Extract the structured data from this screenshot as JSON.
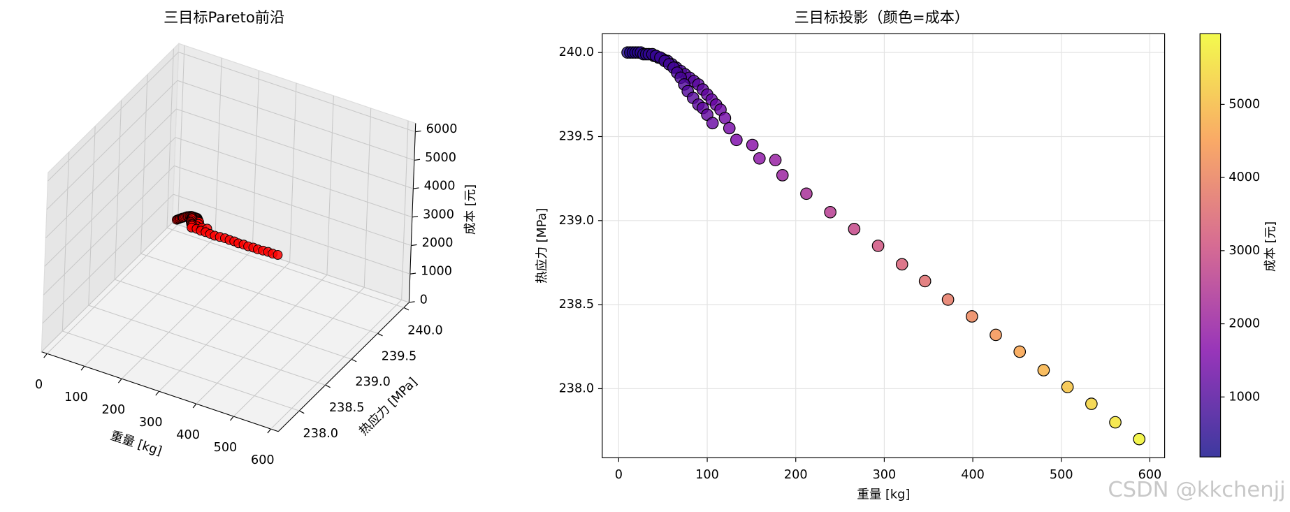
{
  "chart_data": [
    {
      "type": "scatter3d",
      "title": "三目标Pareto前沿",
      "xlabel": "重量 [kg]",
      "ylabel": "热应力 [MPa]",
      "zlabel": "成本 [元]",
      "color": "#ff0000",
      "x": [
        10,
        13,
        16,
        19,
        22,
        25,
        28,
        31,
        34,
        40,
        45,
        50,
        55,
        60,
        65,
        70,
        75,
        80,
        85,
        90,
        95,
        100,
        105,
        110,
        115,
        120,
        125,
        38,
        42,
        47,
        52,
        57,
        62,
        66,
        70,
        74,
        78,
        84,
        90,
        95,
        100,
        106,
        133,
        151,
        159,
        177,
        185,
        212,
        239,
        266,
        293,
        320,
        346,
        372,
        399,
        426,
        453,
        480,
        507,
        534,
        561,
        588
      ],
      "y": [
        240.0,
        240.0,
        240.0,
        240.0,
        240.0,
        240.0,
        239.99,
        239.99,
        239.99,
        239.98,
        239.97,
        239.96,
        239.95,
        239.93,
        239.91,
        239.89,
        239.87,
        239.85,
        239.83,
        239.81,
        239.78,
        239.75,
        239.72,
        239.69,
        239.66,
        239.61,
        239.55,
        239.99,
        239.98,
        239.97,
        239.95,
        239.93,
        239.91,
        239.88,
        239.85,
        239.81,
        239.77,
        239.73,
        239.69,
        239.67,
        239.63,
        239.58,
        239.48,
        239.45,
        239.37,
        239.36,
        239.27,
        239.16,
        239.05,
        238.95,
        238.85,
        238.74,
        238.64,
        238.53,
        238.43,
        238.32,
        238.22,
        238.11,
        238.01,
        237.91,
        237.8,
        237.7
      ],
      "z": [
        395,
        424,
        452,
        481,
        509,
        538,
        566,
        595,
        623,
        680,
        728,
        775,
        823,
        870,
        918,
        965,
        1013,
        1060,
        1108,
        1155,
        1203,
        1250,
        1298,
        1345,
        1393,
        1440,
        1488,
        661,
        699,
        747,
        794,
        842,
        889,
        927,
        965,
        1003,
        1041,
        1098,
        1155,
        1203,
        1250,
        1307,
        1564,
        1735,
        1811,
        1982,
        2058,
        2314,
        2571,
        2827,
        3084,
        3340,
        3587,
        3834,
        4091,
        4347,
        4604,
        4860,
        5117,
        5373,
        5630,
        5886
      ],
      "xlim": [
        -15,
        620
      ],
      "ylim": [
        237.6,
        240.1
      ],
      "zlim": [
        0,
        6300
      ],
      "xticks": [
        0,
        100,
        200,
        300,
        400,
        500,
        600
      ],
      "yticks": [
        {
          "value": 238,
          "label": "238.0"
        },
        {
          "value": 238.5,
          "label": "238.5"
        },
        {
          "value": 239,
          "label": "239.0"
        },
        {
          "value": 239.5,
          "label": "239.5"
        },
        {
          "value": 240,
          "label": "240.0"
        }
      ],
      "zticks": [
        0,
        1000,
        2000,
        3000,
        4000,
        5000,
        6000
      ],
      "grid": true
    },
    {
      "type": "scatter",
      "title": "三目标投影（颜色=成本）",
      "xlabel": "重量 [kg]",
      "ylabel": "热应力 [MPa]",
      "colorbar_label": "成本 [元]",
      "colormap": "plasma",
      "x": [
        10,
        13,
        16,
        19,
        22,
        25,
        28,
        31,
        34,
        40,
        45,
        50,
        55,
        60,
        65,
        70,
        75,
        80,
        85,
        90,
        95,
        100,
        105,
        110,
        115,
        120,
        125,
        38,
        42,
        47,
        52,
        57,
        62,
        66,
        70,
        74,
        78,
        84,
        90,
        95,
        100,
        106,
        133,
        151,
        159,
        177,
        185,
        212,
        239,
        266,
        293,
        320,
        346,
        372,
        399,
        426,
        453,
        480,
        507,
        534,
        561,
        588
      ],
      "y": [
        240.0,
        240.0,
        240.0,
        240.0,
        240.0,
        240.0,
        239.99,
        239.99,
        239.99,
        239.98,
        239.97,
        239.96,
        239.95,
        239.93,
        239.91,
        239.89,
        239.87,
        239.85,
        239.83,
        239.81,
        239.78,
        239.75,
        239.72,
        239.69,
        239.66,
        239.61,
        239.55,
        239.99,
        239.98,
        239.97,
        239.95,
        239.93,
        239.91,
        239.88,
        239.85,
        239.81,
        239.77,
        239.73,
        239.69,
        239.67,
        239.63,
        239.58,
        239.48,
        239.45,
        239.37,
        239.36,
        239.27,
        239.16,
        239.05,
        238.95,
        238.85,
        238.74,
        238.64,
        238.53,
        238.43,
        238.32,
        238.22,
        238.11,
        238.01,
        237.91,
        237.8,
        237.7
      ],
      "c": [
        395,
        424,
        452,
        481,
        509,
        538,
        566,
        595,
        623,
        680,
        728,
        775,
        823,
        870,
        918,
        965,
        1013,
        1060,
        1108,
        1155,
        1203,
        1250,
        1298,
        1345,
        1393,
        1440,
        1488,
        661,
        699,
        747,
        794,
        842,
        889,
        927,
        965,
        1003,
        1041,
        1098,
        1155,
        1203,
        1250,
        1307,
        1564,
        1735,
        1811,
        1982,
        2058,
        2314,
        2571,
        2827,
        3084,
        3340,
        3587,
        3834,
        4091,
        4347,
        4604,
        4860,
        5117,
        5373,
        5630,
        5886
      ],
      "xlim": [
        -18.6,
        616.7
      ],
      "ylim": [
        237.589,
        240.112
      ],
      "clim": [
        180,
        5966
      ],
      "xticks": [
        0,
        100,
        200,
        300,
        400,
        500,
        600
      ],
      "yticks": [
        {
          "value": 238,
          "label": "238.0"
        },
        {
          "value": 238.5,
          "label": "238.5"
        },
        {
          "value": 239,
          "label": "239.0"
        },
        {
          "value": 239.5,
          "label": "239.5"
        },
        {
          "value": 240,
          "label": "240.0"
        }
      ],
      "cticks": [
        1000,
        2000,
        3000,
        4000,
        5000
      ],
      "grid": true
    }
  ],
  "watermark": "CSDN @kkchenjj"
}
